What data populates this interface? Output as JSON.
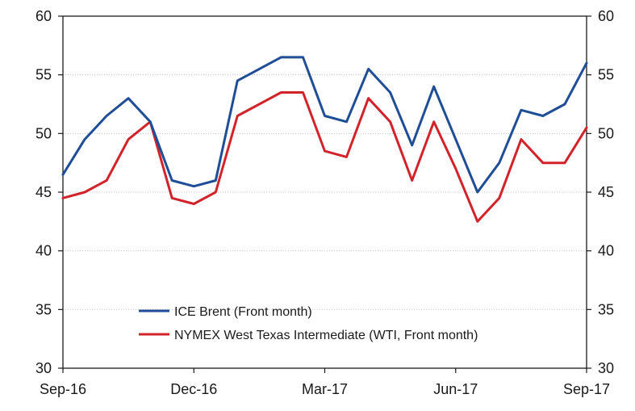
{
  "chart_data": {
    "type": "line",
    "title": "",
    "xlabel": "",
    "ylabel": "",
    "ylim": [
      30,
      60
    ],
    "y_ticks": [
      "30",
      "35",
      "40",
      "45",
      "50",
      "55",
      "60"
    ],
    "x_ticks": [
      "Sep-16",
      "Dec-16",
      "Mar-17",
      "Jun-17",
      "Sep-17"
    ],
    "grid": true,
    "legend_position": "bottom-left",
    "colors": {
      "brent": "#1f4e96",
      "wti": "#d2232a"
    },
    "x": [
      "Sep-16",
      "Oct-16",
      "Oct-16",
      "Nov-16",
      "Nov-16",
      "Dec-16",
      "Dec-16",
      "Jan-17",
      "Jan-17",
      "Feb-17",
      "Feb-17",
      "Mar-17",
      "Mar-17",
      "Apr-17",
      "Apr-17",
      "May-17",
      "May-17",
      "Jun-17",
      "Jun-17",
      "Jul-17",
      "Jul-17",
      "Aug-17",
      "Aug-17",
      "Sep-17",
      "Sep-17"
    ],
    "series": [
      {
        "name": "ICE Brent (Front month)",
        "values": [
          46.5,
          49.5,
          51.5,
          53.0,
          51.0,
          46.0,
          45.5,
          46.0,
          54.5,
          55.5,
          56.5,
          56.5,
          51.5,
          51.0,
          55.5,
          53.5,
          49.0,
          54.0,
          49.5,
          45.0,
          47.5,
          52.0,
          51.5,
          52.5,
          56.0
        ]
      },
      {
        "name": "NYMEX West Texas Intermediate (WTI, Front month)",
        "values": [
          44.5,
          45.0,
          46.0,
          49.5,
          51.0,
          44.5,
          44.0,
          45.0,
          51.5,
          52.5,
          53.5,
          53.5,
          48.5,
          48.0,
          53.0,
          51.0,
          46.0,
          51.0,
          47.0,
          42.5,
          44.5,
          49.5,
          47.5,
          47.5,
          50.5
        ]
      }
    ]
  }
}
